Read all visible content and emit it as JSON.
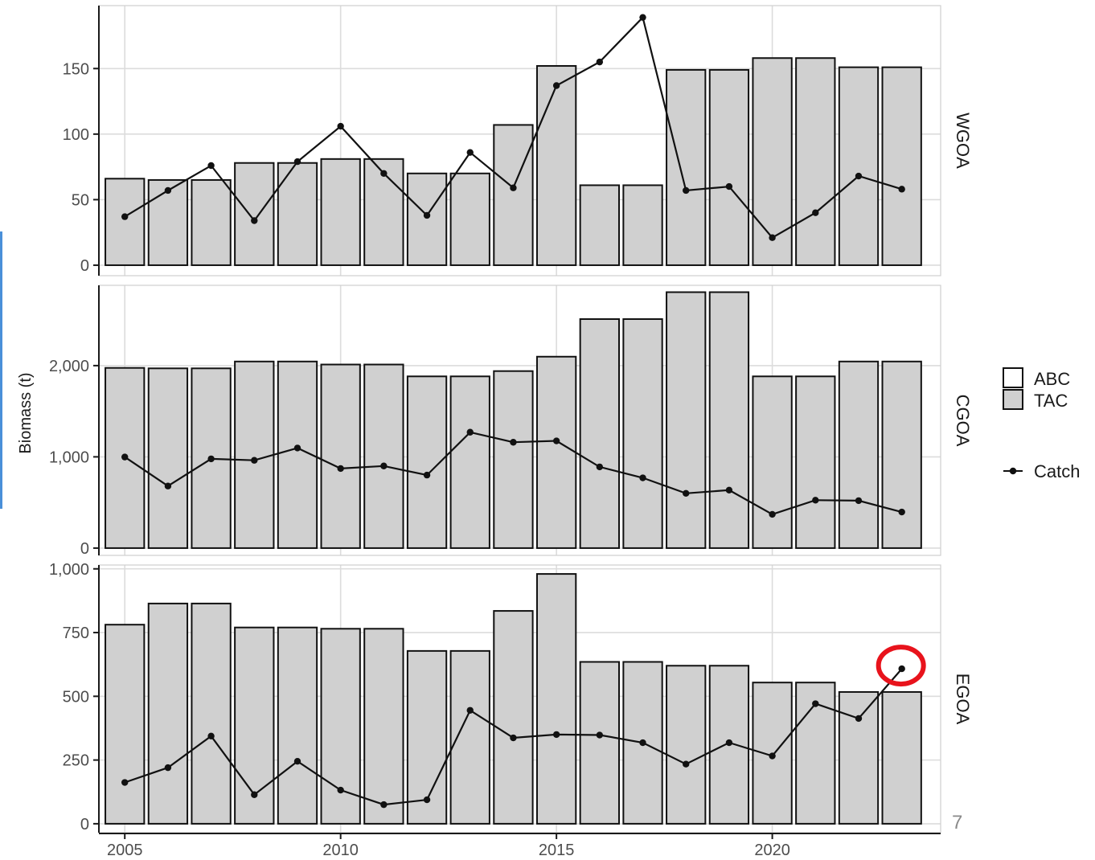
{
  "chart_data": {
    "type": "bar",
    "xlabel": "",
    "ylabel": "Biomass (t)",
    "x_ticks": [
      "2005",
      "2010",
      "2015",
      "2020"
    ],
    "years": [
      2005,
      2006,
      2007,
      2008,
      2009,
      2010,
      2011,
      2012,
      2013,
      2014,
      2015,
      2016,
      2017,
      2018,
      2019,
      2020,
      2021,
      2022,
      2023
    ],
    "legend": [
      {
        "name": "ABC",
        "kind": "bar",
        "fill": "#ffffff"
      },
      {
        "name": "TAC",
        "kind": "bar",
        "fill": "#d0d0d0"
      },
      {
        "name": "Catch",
        "kind": "line-point",
        "color": "#111111"
      }
    ],
    "panels": [
      {
        "name": "WGOA",
        "ylim": [
          -8,
          198
        ],
        "y_ticks": [
          0,
          50,
          100,
          150
        ],
        "y_tick_labels": [
          "0",
          "50",
          "100",
          "150"
        ],
        "TAC": [
          66,
          65,
          65,
          78,
          78,
          81,
          81,
          70,
          70,
          107,
          152,
          61,
          61,
          149,
          149,
          158,
          158,
          151,
          151
        ],
        "Catch": [
          37,
          57,
          76,
          34,
          79,
          106,
          70,
          38,
          86,
          59,
          137,
          155,
          189,
          57,
          60,
          21,
          40,
          68,
          58
        ]
      },
      {
        "name": "CGOA",
        "ylim": [
          -80,
          2880
        ],
        "y_ticks": [
          0,
          1000,
          2000
        ],
        "y_tick_labels": [
          "0",
          "1,000",
          "2,000"
        ],
        "TAC": [
          1975,
          1970,
          1970,
          2045,
          2045,
          2012,
          2012,
          1882,
          1882,
          1940,
          2098,
          2510,
          2510,
          2805,
          2805,
          1882,
          1882,
          2045,
          2045
        ],
        "Catch": [
          998,
          680,
          978,
          962,
          1097,
          872,
          900,
          800,
          1270,
          1160,
          1175,
          890,
          770,
          600,
          635,
          370,
          525,
          520,
          395
        ]
      },
      {
        "name": "EGOA",
        "ylim": [
          -35,
          1015
        ],
        "y_ticks": [
          0,
          250,
          500,
          750,
          1000
        ],
        "y_tick_labels": [
          "0",
          "250",
          "500",
          "750",
          "1,000"
        ],
        "TAC": [
          781,
          864,
          864,
          770,
          770,
          765,
          765,
          678,
          678,
          835,
          980,
          635,
          635,
          620,
          620,
          554,
          554,
          517,
          517
        ],
        "Catch": [
          162,
          220,
          344,
          114,
          245,
          132,
          75,
          94,
          445,
          337,
          350,
          348,
          318,
          234,
          318,
          266,
          471,
          413,
          608
        ]
      }
    ],
    "highlight": {
      "panel": "EGOA",
      "year": 2023,
      "color": "#e8131c"
    }
  },
  "page_number": "7"
}
